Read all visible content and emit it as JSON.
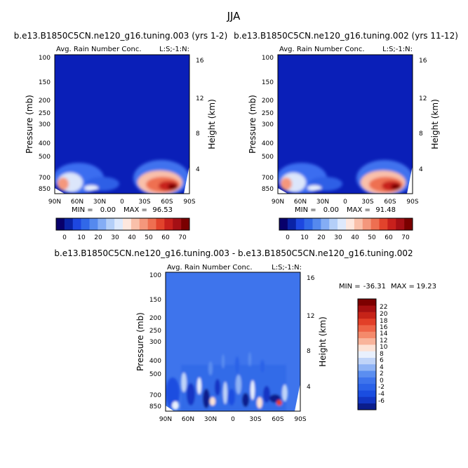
{
  "figure": {
    "title": "JJA",
    "panel1_title": "b.e13.B1850C5CN.ne120_g16.tuning.003 (yrs 1-2)",
    "panel2_title": "b.e13.B1850C5CN.ne120_g16.tuning.002 (yrs 11-12)",
    "panel3_title": "b.e13.B1850C5CN.ne120_g16.tuning.003 - b.e13.B1850C5CN.ne120_g16.tuning.002"
  },
  "colors": {
    "abs_scale": [
      "#08006b",
      "#0a23a6",
      "#1d47e0",
      "#3168e8",
      "#5589ee",
      "#84adf5",
      "#b4cff8",
      "#dde9fc",
      "#fde7de",
      "#f9c0aa",
      "#f4977c",
      "#ee6f51",
      "#e2432c",
      "#c8201c",
      "#a50f15",
      "#7a0000"
    ],
    "diff_scale": [
      "#0b1d8c",
      "#1236c4",
      "#1a4de0",
      "#2b62e8",
      "#3e74ec",
      "#5b8ef0",
      "#8fb3f5",
      "#c0d4f8",
      "#e9f0fd",
      "#fde2d5",
      "#f9b49b",
      "#f48a6b",
      "#ee6447",
      "#e23f28",
      "#c62318",
      "#a60f10",
      "#7d0000"
    ]
  },
  "chart_data": [
    {
      "type": "heatmap",
      "title": "Avg. Rain Number Conc.",
      "subtitle_right": "L:S;-1:N:",
      "x_ticklabels": [
        "90N",
        "60N",
        "30N",
        "0",
        "30S",
        "60S",
        "90S"
      ],
      "ylabel": "Pressure (mb)",
      "y_ticklabels": [
        "100",
        "150",
        "200",
        "250",
        "300",
        "400",
        "500",
        "700",
        "850"
      ],
      "y2label": "Height (km)",
      "y2_ticklabels": [
        "16",
        "12",
        "8",
        "4"
      ],
      "min_label": "MIN =",
      "min": "0.00",
      "max_label": "MAX =",
      "max": "96.53",
      "colorbar_levels": [
        "0",
        "10",
        "20",
        "30",
        "40",
        "50",
        "60",
        "70"
      ]
    },
    {
      "type": "heatmap",
      "title": "Avg. Rain Number Conc.",
      "subtitle_right": "L:S;-1:N:",
      "x_ticklabels": [
        "90N",
        "60N",
        "30N",
        "0",
        "30S",
        "60S",
        "90S"
      ],
      "ylabel": "Pressure (mb)",
      "y_ticklabels": [
        "100",
        "150",
        "200",
        "250",
        "300",
        "400",
        "500",
        "700",
        "850"
      ],
      "y2label": "Height (km)",
      "y2_ticklabels": [
        "16",
        "12",
        "8",
        "4"
      ],
      "min_label": "MIN =",
      "min": "0.00",
      "max_label": "MAX =",
      "max": "91.48",
      "colorbar_levels": [
        "0",
        "10",
        "20",
        "30",
        "40",
        "50",
        "60",
        "70"
      ]
    },
    {
      "type": "heatmap",
      "title": "Avg. Rain Number Conc.",
      "subtitle_right": "L:S;-1:N:",
      "x_ticklabels": [
        "90N",
        "60N",
        "30N",
        "0",
        "30S",
        "60S",
        "90S"
      ],
      "ylabel": "Pressure (mb)",
      "y_ticklabels": [
        "100",
        "150",
        "200",
        "250",
        "300",
        "400",
        "500",
        "700",
        "850"
      ],
      "y2label": "Height (km)",
      "y2_ticklabels": [
        "16",
        "12",
        "8",
        "4"
      ],
      "min_label": "MIN =",
      "min": "-36.31",
      "max_label": "MAX =",
      "max": "19.23",
      "colorbar_levels": [
        "22",
        "20",
        "18",
        "16",
        "14",
        "12",
        "10",
        "8",
        "6",
        "4",
        "2",
        "0",
        "-2",
        "-4",
        "-6"
      ]
    }
  ]
}
